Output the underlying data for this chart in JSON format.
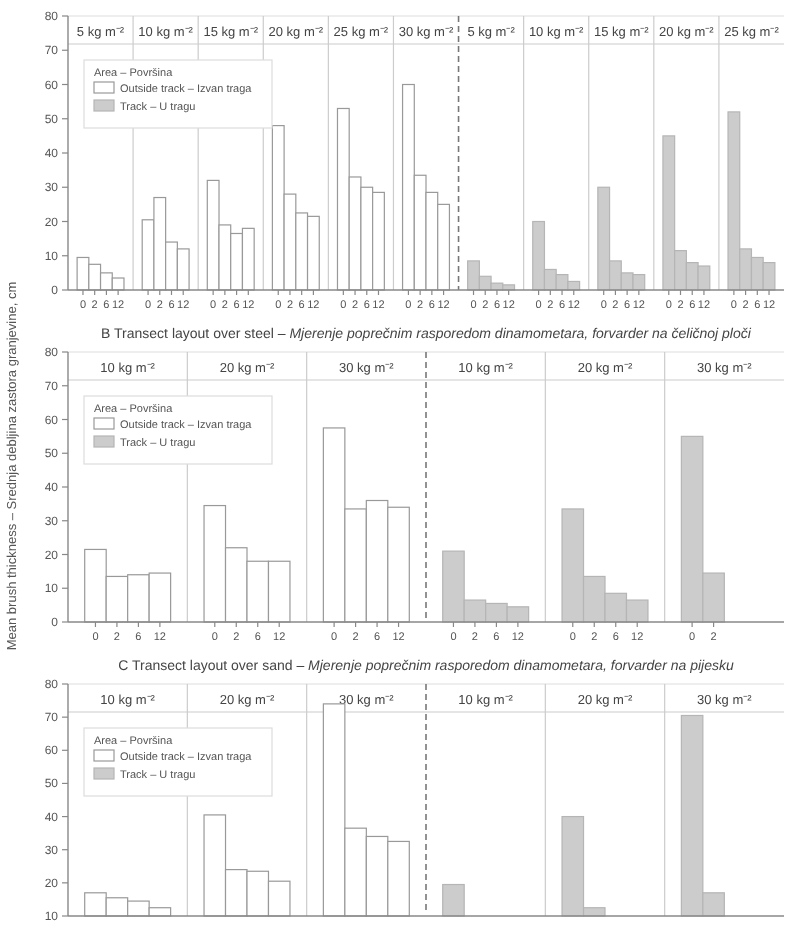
{
  "chart_data": [
    {
      "type": "bar",
      "categories": [
        "0",
        "2",
        "6",
        "12",
        "0",
        "2",
        "6",
        "12",
        "0",
        "2",
        "6",
        "12",
        "0",
        "2",
        "6",
        "12",
        "0",
        "2",
        "6",
        "12",
        "0",
        "2",
        "6",
        "12",
        "0",
        "2",
        "6",
        "12",
        "0",
        "2",
        "6",
        "12",
        "0",
        "2",
        "6",
        "12",
        "0",
        "2",
        "6",
        "12",
        "0",
        "2",
        "6",
        "12"
      ],
      "annotations": [
        "5 kg m⁻²",
        "10 kg m⁻²",
        "15 kg m⁻²",
        "20 kg m⁻²",
        "25 kg m⁻²",
        "30 kg m⁻²",
        "5 kg m⁻²",
        "10 kg m⁻²",
        "15 kg m⁻²",
        "20 kg m⁻²",
        "25 kg m⁻²"
      ],
      "legend_title": "Area – Površina",
      "legend": "top left",
      "series": [
        {
          "name": "Outside track – Izvan traga",
          "color": "#ffffff",
          "values": [
            9.5,
            7.5,
            5,
            3.5,
            20.5,
            27,
            14,
            12,
            32,
            19,
            16.5,
            18,
            48,
            28,
            22.5,
            21.5,
            53,
            33,
            30,
            28.5,
            60,
            33.5,
            28.5,
            25,
            null,
            null,
            null,
            null,
            null,
            null,
            null,
            null,
            null,
            null,
            null,
            null,
            null,
            null,
            null,
            null,
            null,
            null,
            null,
            null
          ]
        },
        {
          "name": "Track – U tragu",
          "color": "#cccccc",
          "values": [
            null,
            null,
            null,
            null,
            null,
            null,
            null,
            null,
            null,
            null,
            null,
            null,
            null,
            null,
            null,
            null,
            null,
            null,
            null,
            null,
            null,
            null,
            null,
            null,
            8.5,
            4,
            2,
            1.5,
            20,
            6,
            4.5,
            2.5,
            30,
            8.5,
            5,
            4.5,
            45,
            11.5,
            8,
            7,
            52,
            12,
            9.5,
            8
          ]
        }
      ],
      "ylim": [
        0,
        80
      ],
      "yticks": [
        0,
        10,
        20,
        30,
        40,
        50,
        60,
        70,
        80
      ]
    },
    {
      "type": "bar",
      "title": "B  Transect layout over steel – Mjerenje poprečnim rasporedom dinamometara, forvarder na čeličnoj ploči",
      "ylabel": "Mean brush thickness – Srednja debljina zastora granjevine, cm",
      "categories": [
        "0",
        "2",
        "6",
        "12",
        "0",
        "2",
        "6",
        "12",
        "0",
        "2",
        "6",
        "12",
        "0",
        "2",
        "6",
        "12",
        "0",
        "2",
        "6",
        "12",
        "0",
        "2",
        null,
        null
      ],
      "annotations": [
        "10 kg m⁻²",
        "20 kg m⁻²",
        "30 kg m⁻²",
        "10 kg m⁻²",
        "20 kg m⁻²",
        "30 kg m⁻²"
      ],
      "legend_title": "Area – Površina",
      "legend": "top left",
      "series": [
        {
          "name": "Outside track – Izvan traga",
          "color": "#ffffff",
          "values": [
            21.5,
            13.5,
            14,
            14.5,
            34.5,
            22,
            18,
            18,
            57.5,
            33.5,
            36,
            34,
            null,
            null,
            null,
            null,
            null,
            null,
            null,
            null,
            null,
            null,
            null,
            null
          ]
        },
        {
          "name": "Track – U tragu",
          "color": "#cccccc",
          "values": [
            null,
            null,
            null,
            null,
            null,
            null,
            null,
            null,
            null,
            null,
            null,
            null,
            21,
            6.5,
            5.5,
            4.5,
            33.5,
            13.5,
            8.5,
            6.5,
            55,
            14.5,
            null,
            null
          ]
        }
      ],
      "ylim": [
        0,
        80
      ],
      "yticks": [
        0,
        10,
        20,
        30,
        40,
        50,
        60,
        70,
        80
      ]
    },
    {
      "type": "bar",
      "title": "C  Transect layout over sand – Mjerenje poprečnim rasporedom dinamometara, forvarder na pijesku",
      "categories": [
        null,
        null,
        null,
        null,
        null,
        null,
        null,
        null,
        null,
        null,
        null,
        null,
        null,
        null,
        null,
        null,
        null,
        null,
        null,
        null,
        null,
        null,
        null,
        null
      ],
      "annotations": [
        "10 kg m⁻²",
        "20 kg m⁻²",
        "30 kg m⁻²",
        "10 kg m⁻²",
        "20 kg m⁻²",
        "30 kg m⁻²"
      ],
      "legend_title": "Area – Površina",
      "legend": "top left",
      "series": [
        {
          "name": "Outside track – Izvan traga",
          "color": "#ffffff",
          "values": [
            17,
            15.5,
            14.5,
            12.5,
            40.5,
            24,
            23.5,
            20.5,
            74,
            36.5,
            34,
            32.5,
            null,
            null,
            null,
            null,
            null,
            null,
            null,
            null,
            null,
            null,
            null,
            null
          ]
        },
        {
          "name": "Track – U tragu",
          "color": "#cccccc",
          "values": [
            null,
            null,
            null,
            null,
            null,
            null,
            null,
            null,
            null,
            null,
            null,
            null,
            19.5,
            null,
            null,
            null,
            40,
            12.5,
            null,
            null,
            70.5,
            17,
            null,
            null
          ]
        }
      ],
      "ylim": [
        10,
        80
      ],
      "yticks": [
        10,
        20,
        30,
        40,
        50,
        60,
        70,
        80
      ]
    }
  ]
}
